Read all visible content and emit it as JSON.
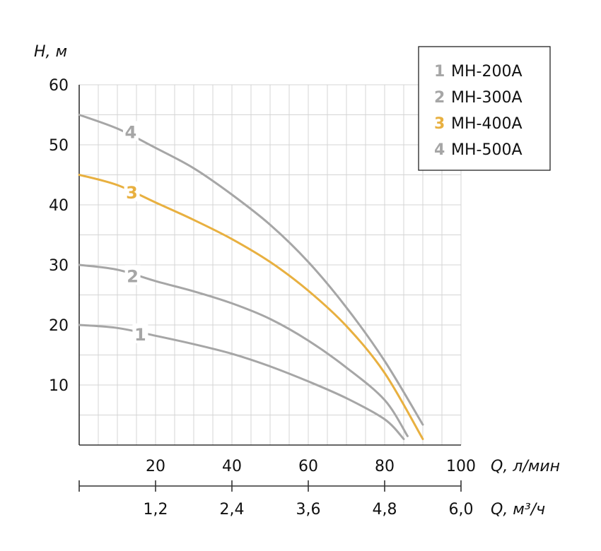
{
  "chart_data": {
    "type": "line",
    "ylabel": "H, м",
    "xlabel": "Q, л/мин",
    "x2label": "Q, м³/ч",
    "xlim": [
      0,
      100
    ],
    "ylim": [
      0,
      60
    ],
    "x_ticks": [
      "20",
      "40",
      "60",
      "80",
      "100"
    ],
    "x2_ticks": [
      "1,2",
      "2,4",
      "3,6",
      "4,8",
      "6,0"
    ],
    "y_ticks": [
      "10",
      "20",
      "30",
      "40",
      "50",
      "60"
    ],
    "grid": true,
    "legend_position": "top-right",
    "series": [
      {
        "id": "1",
        "name": "МН-200А",
        "color": "#a6a6a6",
        "points": [
          [
            0,
            20
          ],
          [
            10,
            19.5
          ],
          [
            20,
            18.2
          ],
          [
            30,
            16.8
          ],
          [
            40,
            15.2
          ],
          [
            50,
            13.1
          ],
          [
            60,
            10.6
          ],
          [
            70,
            7.8
          ],
          [
            80,
            4.3
          ],
          [
            85,
            1.0
          ]
        ]
      },
      {
        "id": "2",
        "name": "МН-300А",
        "color": "#a6a6a6",
        "points": [
          [
            0,
            30
          ],
          [
            10,
            29.2
          ],
          [
            20,
            27.3
          ],
          [
            30,
            25.6
          ],
          [
            40,
            23.6
          ],
          [
            50,
            21
          ],
          [
            60,
            17.4
          ],
          [
            70,
            12.9
          ],
          [
            80,
            7.5
          ],
          [
            86,
            1.5
          ]
        ]
      },
      {
        "id": "3",
        "name": "МН-400А",
        "color": "#e8b040",
        "points": [
          [
            0,
            45
          ],
          [
            10,
            43.3
          ],
          [
            20,
            40.4
          ],
          [
            30,
            37.5
          ],
          [
            40,
            34.3
          ],
          [
            50,
            30.5
          ],
          [
            60,
            25.7
          ],
          [
            70,
            19.8
          ],
          [
            80,
            12
          ],
          [
            90,
            1
          ]
        ]
      },
      {
        "id": "4",
        "name": "МН-500А",
        "color": "#a6a6a6",
        "points": [
          [
            0,
            55
          ],
          [
            10,
            52.7
          ],
          [
            20,
            49.5
          ],
          [
            30,
            46.1
          ],
          [
            40,
            41.7
          ],
          [
            50,
            36.7
          ],
          [
            60,
            30.5
          ],
          [
            70,
            22.9
          ],
          [
            80,
            14
          ],
          [
            90,
            3.4
          ]
        ]
      }
    ],
    "curve_labels": [
      {
        "id": "1",
        "text": "1",
        "x": 16,
        "y": 18.5
      },
      {
        "id": "2",
        "text": "2",
        "x": 14,
        "y": 28.2
      },
      {
        "id": "3",
        "text": "3",
        "x": 13.8,
        "y": 42.1
      },
      {
        "id": "4",
        "text": "4",
        "x": 13.5,
        "y": 52.2
      }
    ]
  }
}
